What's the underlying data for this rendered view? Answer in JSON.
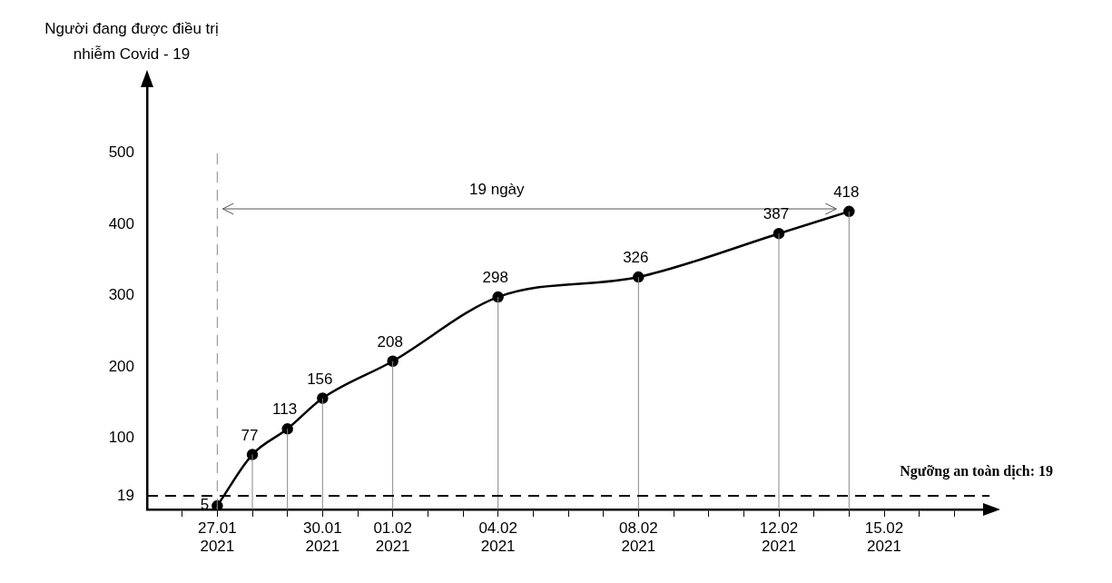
{
  "chart_data": {
    "type": "line",
    "ylabel": "Người đang được điều trị nhiễm Covid - 19",
    "x": [
      "2021-01-27",
      "2021-01-28",
      "2021-01-29",
      "2021-01-30",
      "2021-02-01",
      "2021-02-04",
      "2021-02-08",
      "2021-02-12",
      "2021-02-14"
    ],
    "series": [
      {
        "color": "#000000",
        "values": [
          5,
          77,
          113,
          156,
          208,
          298,
          326,
          387,
          418
        ]
      }
    ],
    "data_labels": true,
    "marker": "circle",
    "line_style": "solid",
    "grid": false,
    "legend": false,
    "xlim": [
      "2021-01-25",
      "2021-02-18"
    ],
    "xticks": [
      {
        "value": "2021-01-26",
        "label": null
      },
      {
        "value": "2021-01-27",
        "label": "27.01\n2021"
      },
      {
        "value": "2021-01-28",
        "label": null
      },
      {
        "value": "2021-01-29",
        "label": null
      },
      {
        "value": "2021-01-30",
        "label": "30.01\n2021"
      },
      {
        "value": "2021-01-31",
        "label": null
      },
      {
        "value": "2021-02-01",
        "label": "01.02\n2021"
      },
      {
        "value": "2021-02-02",
        "label": null
      },
      {
        "value": "2021-02-03",
        "label": null
      },
      {
        "value": "2021-02-04",
        "label": "04.02\n2021"
      },
      {
        "value": "2021-02-05",
        "label": null
      },
      {
        "value": "2021-02-06",
        "label": null
      },
      {
        "value": "2021-02-07",
        "label": null
      },
      {
        "value": "2021-02-08",
        "label": "08.02\n2021"
      },
      {
        "value": "2021-02-09",
        "label": null
      },
      {
        "value": "2021-02-10",
        "label": null
      },
      {
        "value": "2021-02-11",
        "label": null
      },
      {
        "value": "2021-02-12",
        "label": "12.02\n2021"
      },
      {
        "value": "2021-02-13",
        "label": null
      },
      {
        "value": "2021-02-14",
        "label": null
      },
      {
        "value": "2021-02-15",
        "label": "15.02\n2021"
      },
      {
        "value": "2021-02-16",
        "label": null
      },
      {
        "value": "2021-02-17",
        "label": null
      }
    ],
    "ylim": [
      0,
      600
    ],
    "yticks": [
      19,
      100,
      200,
      300,
      400,
      500
    ],
    "ref_lines": [
      {
        "axis": "y",
        "value": 19,
        "label": "Ngưỡng an toàn dịch: 19",
        "color": "#000000",
        "line_style": "dashed"
      },
      {
        "axis": "x",
        "value": "2021-01-27",
        "label": null,
        "color": "#888888",
        "line_style": "dashed"
      }
    ],
    "annotations": [
      "19 ngày"
    ]
  }
}
